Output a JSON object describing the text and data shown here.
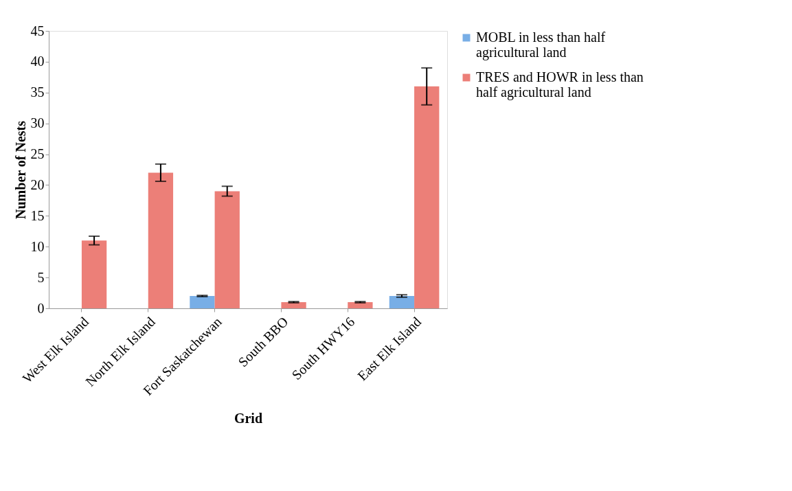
{
  "chart_data": {
    "type": "bar",
    "xlabel": "Grid",
    "ylabel": "Number of Nests",
    "categories": [
      "West Elk Island",
      "North Elk Island",
      "Fort Saskatchewan",
      "South BBO",
      "South HWY16",
      "East Elk Island"
    ],
    "series": [
      {
        "name": "MOBL in less than half agricultural land",
        "color": "#78aee6",
        "values": [
          0,
          0,
          2,
          0,
          0,
          2
        ],
        "errors": [
          null,
          null,
          0.1,
          null,
          null,
          0.2
        ]
      },
      {
        "name": "TRES and HOWR in less than half agricultural land",
        "color": "#ec7f78",
        "values": [
          11,
          22,
          19,
          1,
          1,
          36
        ],
        "errors": [
          0.7,
          1.4,
          0.8,
          0.1,
          0.1,
          3.0
        ]
      }
    ],
    "ylim": [
      0,
      45
    ],
    "yticks": [
      0,
      5,
      10,
      15,
      20,
      25,
      30,
      35,
      40,
      45
    ],
    "grid": false,
    "legend": "right"
  }
}
